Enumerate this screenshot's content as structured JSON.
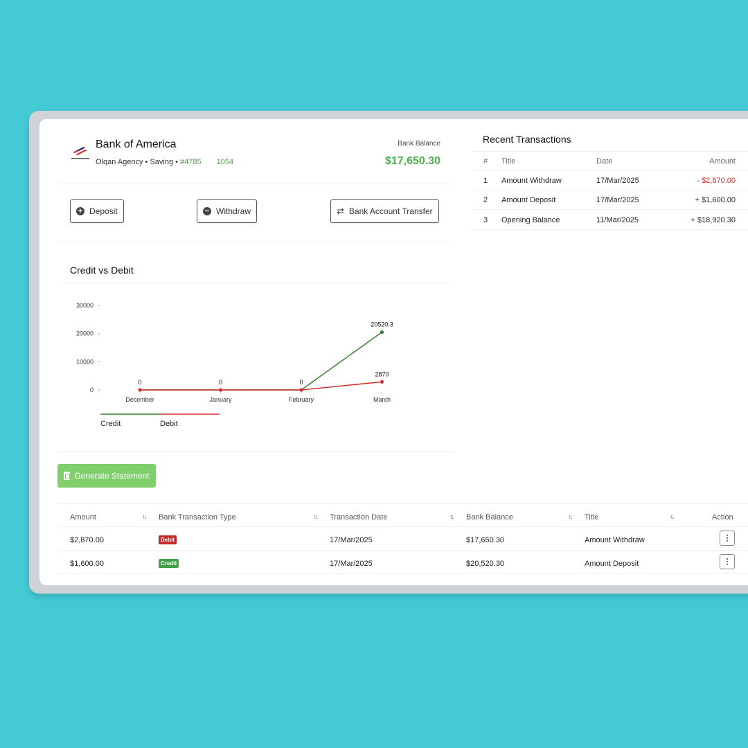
{
  "account": {
    "bank_name": "Bank of America",
    "sub_prefix": "Olqan Agency • Saving • ",
    "account_number": "#4785",
    "account_tail": "1054",
    "balance_label": "Bank Balance",
    "balance_value": "$17,650.30"
  },
  "actions": {
    "deposit": "Deposit",
    "withdraw": "Withdraw",
    "transfer": "Bank Account Transfer"
  },
  "generate_statement": "Generate Statement",
  "recent": {
    "title": "Recent Transactions",
    "headers": {
      "num": "#",
      "title": "Title",
      "date": "Date",
      "amount": "Amount"
    },
    "rows": [
      {
        "num": "1",
        "title": "Amount Withdraw",
        "date": "17/Mar/2025",
        "amount": "- $2,870.00"
      },
      {
        "num": "2",
        "title": "Amount Deposit",
        "date": "17/Mar/2025",
        "amount": "+ $1,600.00"
      },
      {
        "num": "3",
        "title": "Opening Balance",
        "date": "11/Mar/2025",
        "amount": "+ $18,920.30"
      }
    ]
  },
  "table": {
    "headers": {
      "amount": "Amount",
      "type": "Bank Transaction Type",
      "date": "Transaction Date",
      "balance": "Bank Balance",
      "title": "Title",
      "action": "Action"
    },
    "rows": [
      {
        "amount": "$2,870.00",
        "type": "Debit",
        "date": "17/Mar/2025",
        "balance": "$17,650.30",
        "title": "Amount Withdraw"
      },
      {
        "amount": "$1,600.00",
        "type": "Credit",
        "date": "17/Mar/2025",
        "balance": "$20,520.30",
        "title": "Amount Deposit"
      }
    ]
  },
  "chart_data": {
    "type": "line",
    "title": "Credit vs Debit",
    "categories": [
      "December",
      "January",
      "February",
      "March"
    ],
    "ylim": [
      0,
      30000
    ],
    "yticks": [
      0,
      10000,
      20000,
      30000
    ],
    "series": [
      {
        "name": "Credit",
        "color": "#2e7d32",
        "values": [
          0,
          0,
          0,
          20520.3
        ]
      },
      {
        "name": "Debit",
        "color": "#d32f2f",
        "values": [
          0,
          0,
          0,
          2870
        ]
      }
    ],
    "data_labels": [
      {
        "series": "Credit",
        "index": 3,
        "text": "20520.3"
      },
      {
        "series": "Debit",
        "index": 0,
        "text": "0"
      },
      {
        "series": "Debit",
        "index": 1,
        "text": "0"
      },
      {
        "series": "Debit",
        "index": 2,
        "text": "0"
      },
      {
        "series": "Debit",
        "index": 3,
        "text": "2870"
      }
    ],
    "legend": "bottom-left",
    "grid": false
  }
}
